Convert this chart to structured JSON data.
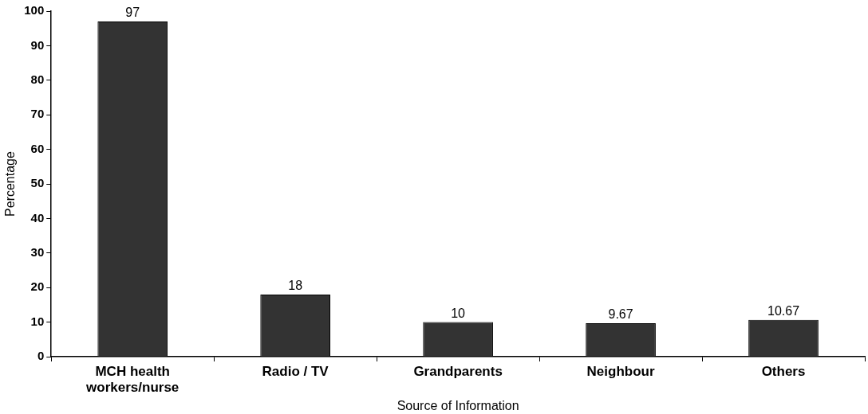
{
  "chart_data": {
    "type": "bar",
    "xlabel": "Source of Information",
    "ylabel": "Percentage",
    "categories": [
      "MCH health workers/nurse",
      "Radio / TV",
      "Grandparents",
      "Neighbour",
      "Others"
    ],
    "values": [
      97,
      18,
      10,
      9.67,
      10.67
    ],
    "color": "#333333",
    "ylim": [
      0,
      100
    ],
    "yticks": [
      0,
      10,
      20,
      30,
      40,
      50,
      60,
      70,
      80,
      90,
      100
    ],
    "grid": false,
    "legend": false,
    "data_labels": true
  }
}
